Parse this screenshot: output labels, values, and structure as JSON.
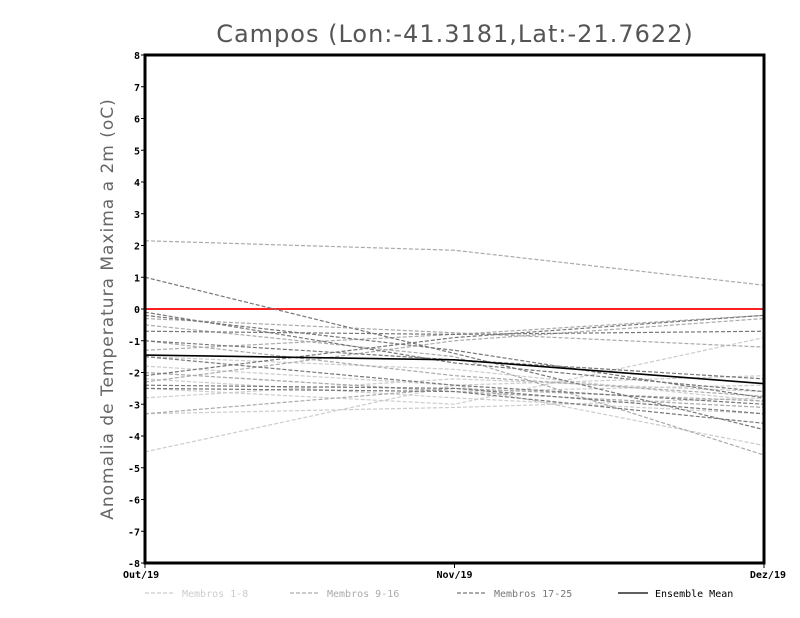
{
  "chart_data": {
    "type": "line",
    "title": "Campos (Lon:-41.3181,Lat:-21.7622)",
    "xlabel": "",
    "ylabel": "Anomalia de Temperatura Maxima a 2m (oC)",
    "categories": [
      "Out/19",
      "Nov/19",
      "Dez/19"
    ],
    "ylim": [
      -8,
      8
    ],
    "yticks": [
      "8",
      "7",
      "6",
      "5",
      "4",
      "3",
      "2",
      "1",
      "0",
      "-1",
      "-2",
      "-3",
      "-4",
      "-5",
      "-6",
      "-7",
      "-8"
    ],
    "reference_line": {
      "value": 0,
      "color": "#ff2020"
    },
    "groups": [
      {
        "name": "Membros 1-8",
        "color": "#cccccc",
        "dashed": true
      },
      {
        "name": "Membros 9-16",
        "color": "#aaaaaa",
        "dashed": true
      },
      {
        "name": "Membros 17-25",
        "color": "#777777",
        "dashed": true
      },
      {
        "name": "Ensemble Mean",
        "color": "#000000",
        "dashed": false
      }
    ],
    "series": [
      {
        "group": 0,
        "values": [
          -4.5,
          -2.4,
          -4.3
        ]
      },
      {
        "group": 0,
        "values": [
          -3.3,
          -3.1,
          -2.8
        ]
      },
      {
        "group": 0,
        "values": [
          -2.0,
          -2.6,
          -2.4
        ]
      },
      {
        "group": 0,
        "values": [
          -2.5,
          -3.0,
          -0.9
        ]
      },
      {
        "group": 0,
        "values": [
          -1.8,
          -2.4,
          -2.1
        ]
      },
      {
        "group": 0,
        "values": [
          -2.2,
          -2.8,
          -3.3
        ]
      },
      {
        "group": 0,
        "values": [
          -1.5,
          -1.9,
          -2.9
        ]
      },
      {
        "group": 0,
        "values": [
          -2.8,
          -2.2,
          -2.6
        ]
      },
      {
        "group": 1,
        "values": [
          2.15,
          1.85,
          0.75
        ]
      },
      {
        "group": 1,
        "values": [
          -0.3,
          -0.75,
          -1.2
        ]
      },
      {
        "group": 1,
        "values": [
          -1.0,
          -2.1,
          -2.75
        ]
      },
      {
        "group": 1,
        "values": [
          -2.0,
          -2.6,
          -3.1
        ]
      },
      {
        "group": 1,
        "values": [
          -3.3,
          -2.5,
          -2.9
        ]
      },
      {
        "group": 1,
        "values": [
          -0.5,
          -1.5,
          -4.6
        ]
      },
      {
        "group": 1,
        "values": [
          -1.3,
          -0.8,
          -0.2
        ]
      },
      {
        "group": 1,
        "values": [
          -2.3,
          -1.0,
          -0.3
        ]
      },
      {
        "group": 2,
        "values": [
          1.0,
          -1.4,
          -3.8
        ]
      },
      {
        "group": 2,
        "values": [
          -0.2,
          -1.3,
          -2.8
        ]
      },
      {
        "group": 2,
        "values": [
          -0.7,
          -0.8,
          -0.7
        ]
      },
      {
        "group": 2,
        "values": [
          -1.0,
          -1.6,
          -2.2
        ]
      },
      {
        "group": 2,
        "values": [
          -2.1,
          -0.9,
          -0.2
        ]
      },
      {
        "group": 2,
        "values": [
          -2.5,
          -2.6,
          -3.6
        ]
      },
      {
        "group": 2,
        "values": [
          -1.5,
          -2.4,
          -3.0
        ]
      },
      {
        "group": 2,
        "values": [
          -0.1,
          -1.7,
          -2.6
        ]
      },
      {
        "group": 2,
        "values": [
          -2.4,
          -2.5,
          -3.3
        ]
      },
      {
        "group": 3,
        "values": [
          -1.45,
          -1.6,
          -2.35
        ]
      }
    ]
  }
}
